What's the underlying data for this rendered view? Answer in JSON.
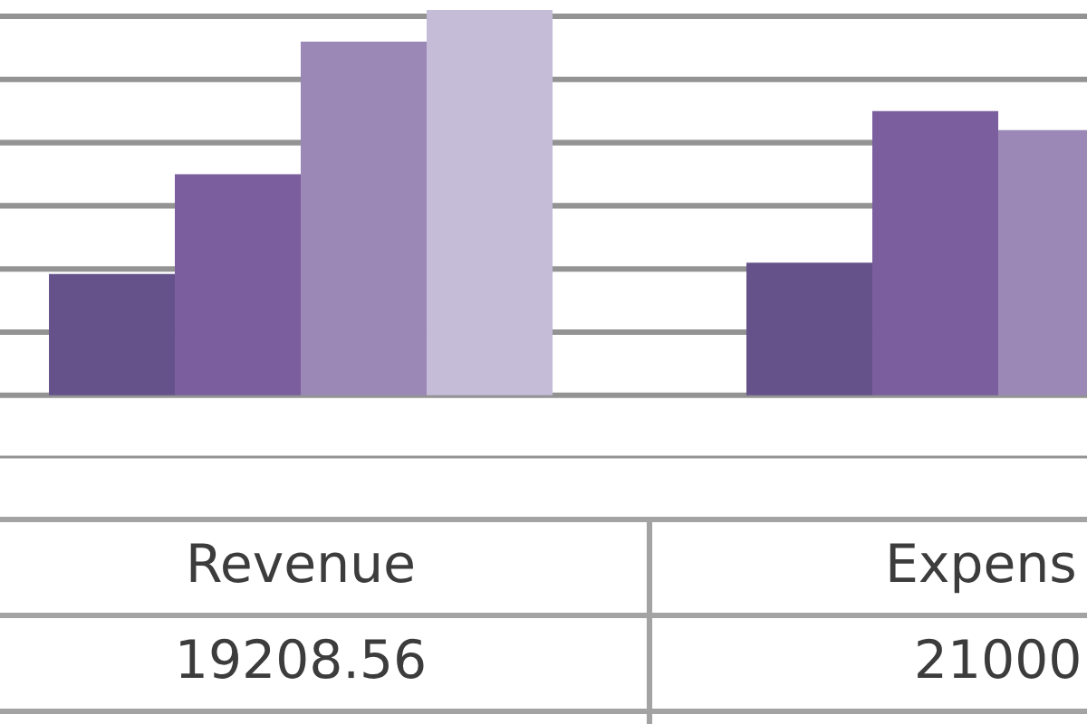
{
  "chart_data": {
    "type": "bar",
    "categories": [
      "Revenue",
      "Expens"
    ],
    "series": [
      {
        "color": "#65528a",
        "values": [
          19208.56,
          21000
        ],
        "value_labels": [
          "19208.56",
          "21000"
        ]
      },
      {
        "color": "#7b5e9d",
        "values": [
          35000,
          45000
        ]
      },
      {
        "color": "#9c88b6",
        "values": [
          56000,
          42000
        ]
      },
      {
        "color": "#c5bcd8",
        "values": [
          61000,
          null
        ]
      }
    ],
    "yticks": [
      {
        "value": -10000,
        "label": null
      },
      {
        "value": 0,
        "label": null
      },
      {
        "value": 10000,
        "label": null
      },
      {
        "value": 20000,
        "label": null
      },
      {
        "value": 30000,
        "label": null
      },
      {
        "value": 40000,
        "label": null
      },
      {
        "value": 50000,
        "label": null
      },
      {
        "value": 60000,
        "label": null
      }
    ],
    "grid": "y",
    "tick_labels": "x"
  }
}
